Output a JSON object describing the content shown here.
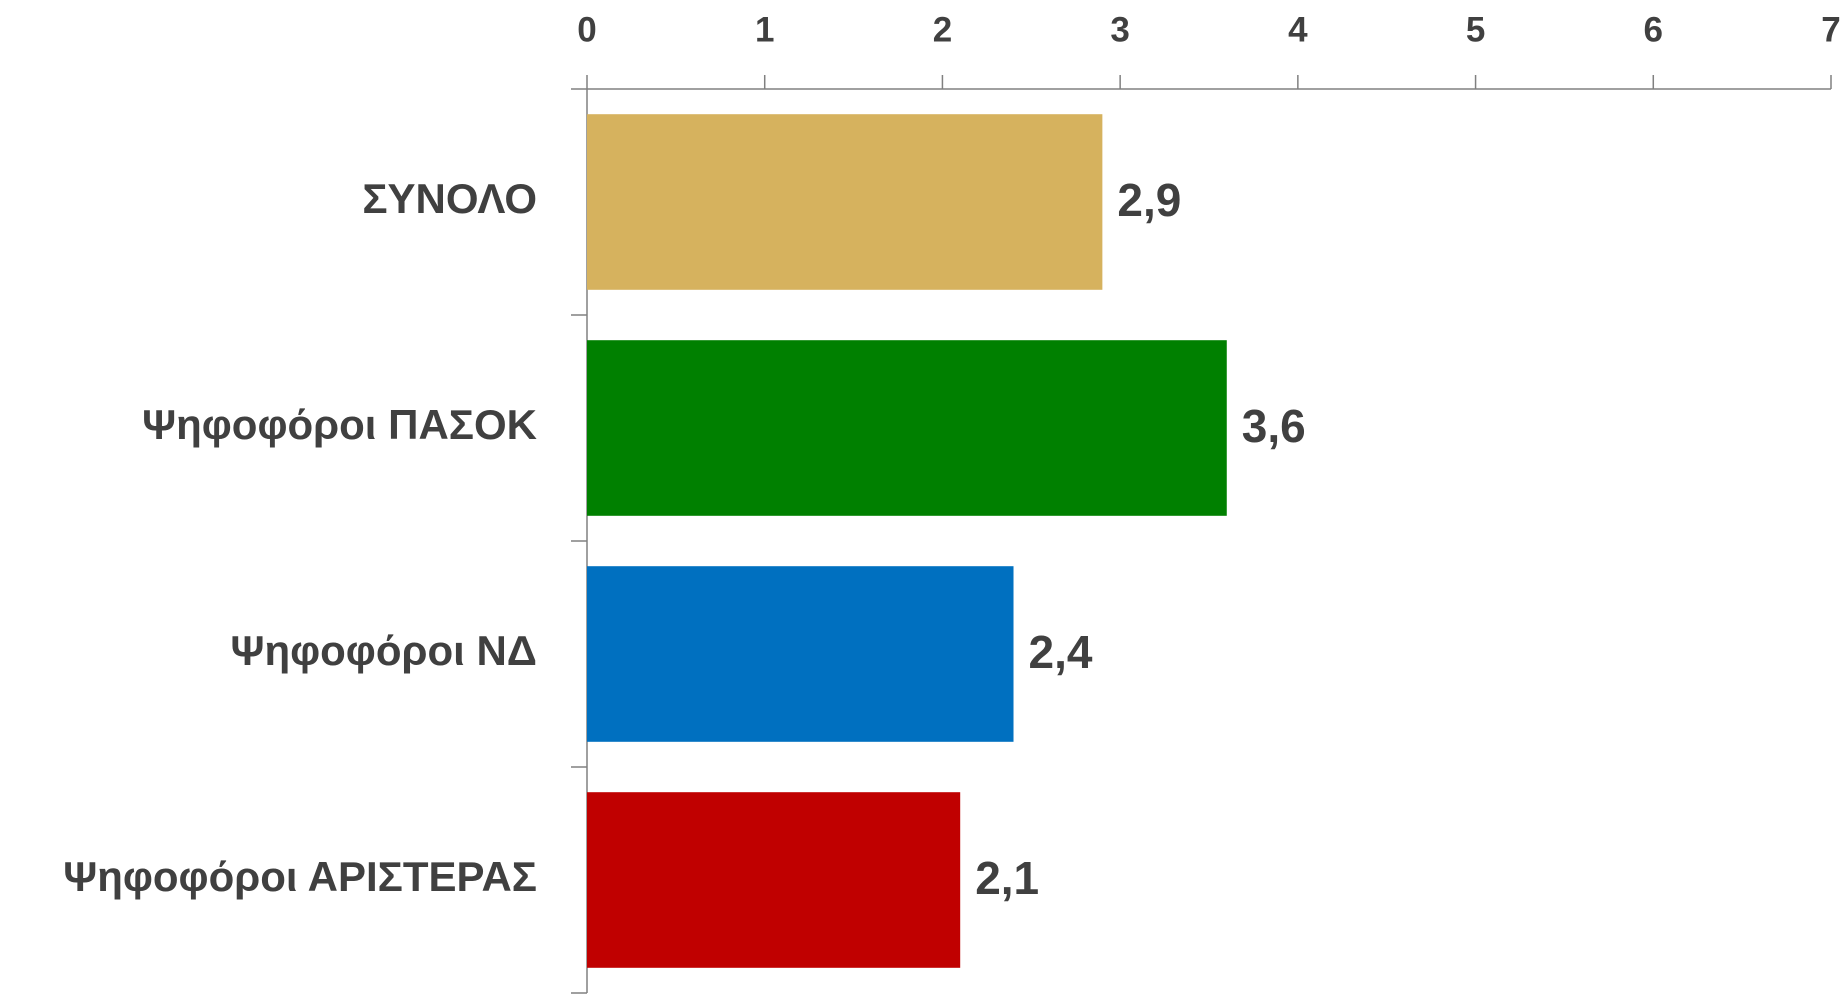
{
  "chart_data": {
    "type": "bar",
    "orientation": "horizontal",
    "categories": [
      "ΣΥΝΟΛΟ",
      "Ψηφοφόροι ΠΑΣΟΚ",
      "Ψηφοφόροι ΝΔ",
      "Ψηφοφόροι ΑΡΙΣΤΕΡΑΣ"
    ],
    "values": [
      2.9,
      3.6,
      2.4,
      2.1
    ],
    "value_labels": [
      "2,9",
      "3,6",
      "2,4",
      "2,1"
    ],
    "colors": [
      "#d6b25e",
      "#008000",
      "#0070c0",
      "#c00000"
    ],
    "xlim": [
      0,
      7
    ],
    "xticks": [
      0,
      1,
      2,
      3,
      4,
      5,
      6,
      7
    ],
    "grid": false
  }
}
